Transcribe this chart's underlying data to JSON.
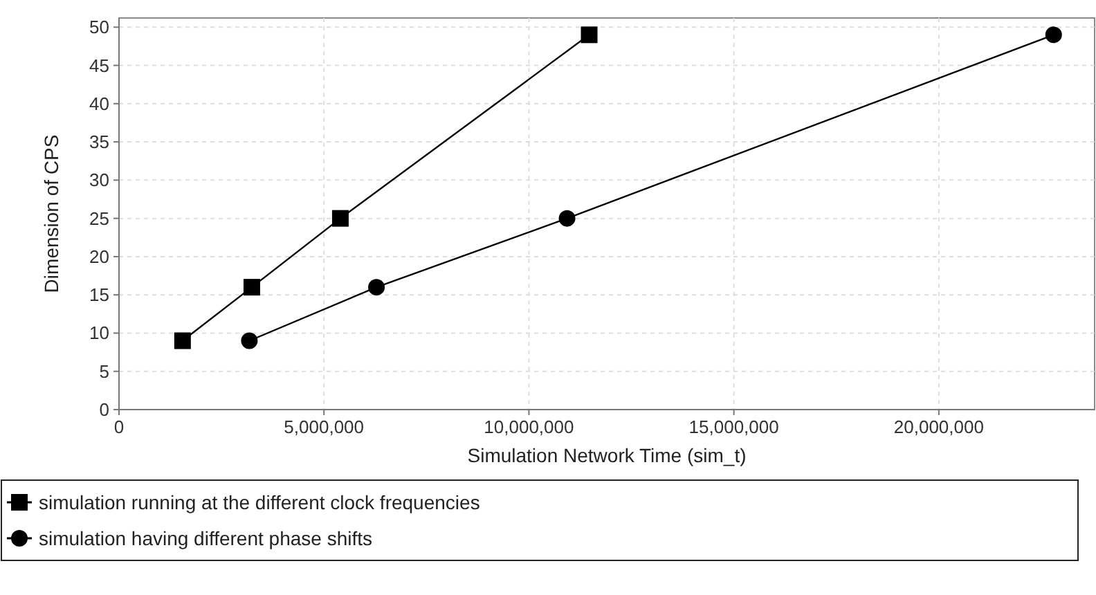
{
  "chart_data": {
    "type": "line",
    "xlabel": "Simulation Network Time (sim_t)",
    "ylabel": "Dimension of CPS",
    "xlim": [
      0,
      23800000
    ],
    "xticks": [
      {
        "value": 0,
        "label": "0"
      },
      {
        "value": 5000000,
        "label": "5,000,000"
      },
      {
        "value": 10000000,
        "label": "10,000,000"
      },
      {
        "value": 15000000,
        "label": "15,000,000"
      },
      {
        "value": 20000000,
        "label": "20,000,000"
      }
    ],
    "ylim": [
      0,
      51.2
    ],
    "yticks": [
      0,
      5,
      10,
      15,
      20,
      25,
      30,
      35,
      40,
      45,
      50
    ],
    "grid": true,
    "legend": "bottom",
    "series": [
      {
        "name": "simulation running at the different clock frequencies",
        "color": "#000000",
        "marker": "square",
        "x": [
          1550000,
          3240000,
          5400000,
          11470000
        ],
        "values": [
          9,
          16,
          25,
          49
        ]
      },
      {
        "name": "simulation having different phase shifts",
        "color": "#000000",
        "marker": "circle",
        "x": [
          3180000,
          6280000,
          10930000,
          22800000
        ],
        "values": [
          9,
          16,
          25,
          49
        ]
      }
    ]
  }
}
